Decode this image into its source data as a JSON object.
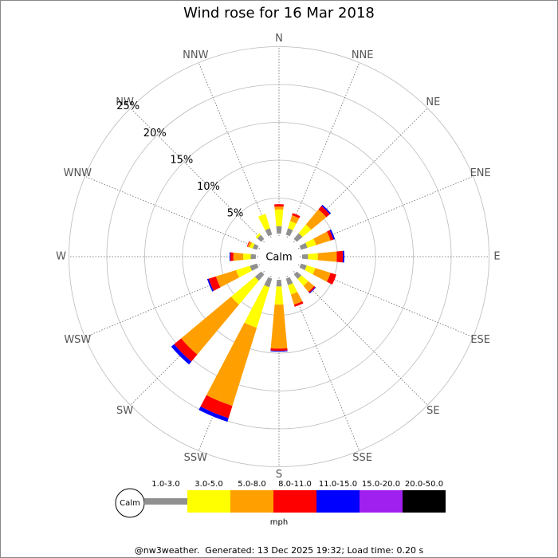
{
  "chart_data": {
    "type": "windrose",
    "title": "Wind rose for 16 Mar 2018",
    "directions": [
      "N",
      "NNE",
      "NE",
      "ENE",
      "E",
      "ESE",
      "SE",
      "SSE",
      "S",
      "SSW",
      "SW",
      "WSW",
      "W",
      "WNW",
      "NW",
      "NNW"
    ],
    "rlim": [
      0,
      25
    ],
    "rticks": [
      {
        "value": 5,
        "label": "5%"
      },
      {
        "value": 10,
        "label": "10%"
      },
      {
        "value": 15,
        "label": "15%"
      },
      {
        "value": 20,
        "label": "20%"
      },
      {
        "value": 25,
        "label": "25%"
      }
    ],
    "center_label": "Calm",
    "legend_unit": "mph",
    "series": [
      {
        "name": "1.0-3.0",
        "color": "#909090",
        "values": [
          1.3,
          1.2,
          1.3,
          1.2,
          1.1,
          1.1,
          1.1,
          1.2,
          1.2,
          1.5,
          1.4,
          1.3,
          1.0,
          0.9,
          1.0,
          1.2
        ]
      },
      {
        "name": "3.0-5.0",
        "color": "#ffff00",
        "values": [
          2.2,
          1.0,
          1.5,
          1.2,
          1.3,
          1.2,
          1.2,
          1.3,
          2.4,
          5.6,
          4.1,
          1.9,
          1.0,
          0.4,
          0.3,
          2.0
        ]
      },
      {
        "name": "5.0-8.0",
        "color": "#ffa000",
        "values": [
          0.4,
          0.8,
          2.6,
          2.0,
          2.5,
          2.1,
          1.0,
          1.4,
          5.8,
          10.8,
          8.6,
          2.8,
          1.3,
          0.3,
          0.0,
          0.0
        ]
      },
      {
        "name": "8.0-11.0",
        "color": "#ff0000",
        "values": [
          0.3,
          0.3,
          0.6,
          0.4,
          0.8,
          0.8,
          0.2,
          0.3,
          0.3,
          1.7,
          1.2,
          1.0,
          0.4,
          0.1,
          0.0,
          0.0
        ]
      },
      {
        "name": "11.0-15.0",
        "color": "#0000ff",
        "values": [
          0.0,
          0.0,
          0.2,
          0.2,
          0.2,
          0.0,
          0.1,
          0.0,
          0.1,
          0.5,
          0.5,
          0.2,
          0.1,
          0.0,
          0.0,
          0.0
        ]
      },
      {
        "name": "15.0-20.0",
        "color": "#a020f0",
        "values": [
          0,
          0,
          0,
          0,
          0,
          0,
          0,
          0,
          0,
          0,
          0,
          0,
          0,
          0,
          0,
          0
        ]
      },
      {
        "name": "20.0-50.0",
        "color": "#000000",
        "values": [
          0,
          0,
          0,
          0,
          0,
          0,
          0,
          0,
          0,
          0,
          0,
          0,
          0,
          0,
          0,
          0
        ]
      }
    ]
  },
  "footer": "@nw3weather.  Generated: 13 Dec 2025 19:32; Load time: 0.20 s"
}
